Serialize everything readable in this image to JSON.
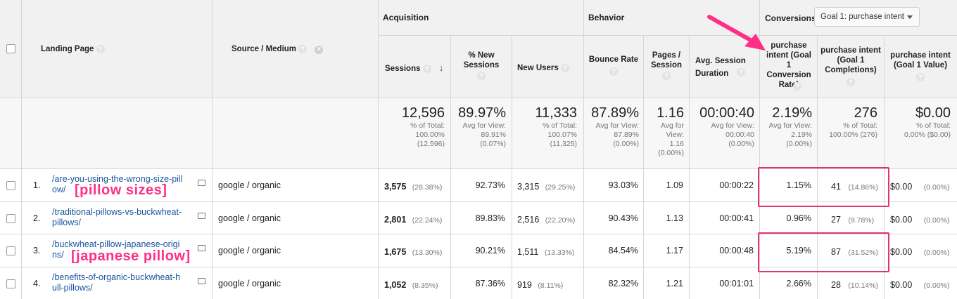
{
  "header": {
    "landing_page": "Landing Page",
    "source_medium": "Source / Medium",
    "acquisition": "Acquisition",
    "behavior": "Behavior",
    "conversions": "Conversions",
    "goal_select": "Goal 1: purchase intent",
    "sessions": "Sessions",
    "new_sessions": "% New Sessions",
    "new_users": "New Users",
    "bounce_rate": "Bounce Rate",
    "pages_session": "Pages / Session",
    "avg_duration": "Avg. Session Duration",
    "conv_rate": "purchase intent (Goal 1 Conversion Rate)",
    "completions": "purchase intent (Goal 1 Completions)",
    "value": "purchase intent (Goal 1 Value)"
  },
  "totals": {
    "sessions": "12,596",
    "sessions_sub": "% of Total: 100.00% (12,596)",
    "new_sessions": "89.97%",
    "new_sessions_sub": "Avg for View: 89.91% (0.07%)",
    "new_users": "11,333",
    "new_users_sub": "% of Total: 100.07% (11,325)",
    "bounce_rate": "87.89%",
    "bounce_rate_sub": "Avg for View: 87.89% (0.00%)",
    "pages": "1.16",
    "pages_sub": "Avg for View: 1.16 (0.00%)",
    "duration": "00:00:40",
    "duration_sub": "Avg for View: 00:00:40 (0.00%)",
    "conv_rate": "2.19%",
    "conv_rate_sub": "Avg for View: 2.19% (0.00%)",
    "completions": "276",
    "completions_sub": "% of Total: 100.00% (276)",
    "value": "$0.00",
    "value_sub": "% of Total: 0.00% ($0.00)"
  },
  "rows": [
    {
      "idx": "1.",
      "page": "/are-you-using-the-wrong-size-pill​ow/",
      "page_l1": "/are-you-using-the-wrong-size-pill",
      "page_l2": "ow/",
      "source": "google / organic",
      "sessions": "3,575",
      "sessions_pct": "(28.38%)",
      "new_sessions": "92.73%",
      "new_users": "3,315",
      "new_users_pct": "(29.25%)",
      "bounce": "93.03%",
      "pages": "1.09",
      "duration": "00:00:22",
      "conv": "1.15%",
      "completions": "41",
      "completions_pct": "(14.86%)",
      "value": "$0.00",
      "value_pct": "(0.00%)"
    },
    {
      "idx": "2.",
      "page_l1": "/traditional-pillows-vs-buckwheat-",
      "page_l2": "pillows/",
      "source": "google / organic",
      "sessions": "2,801",
      "sessions_pct": "(22.24%)",
      "new_sessions": "89.83%",
      "new_users": "2,516",
      "new_users_pct": "(22.20%)",
      "bounce": "90.43%",
      "pages": "1.13",
      "duration": "00:00:41",
      "conv": "0.96%",
      "completions": "27",
      "completions_pct": "(9.78%)",
      "value": "$0.00",
      "value_pct": "(0.00%)"
    },
    {
      "idx": "3.",
      "page_l1": "/buckwheat-pillow-japanese-origi",
      "page_l2": "ns/",
      "source": "google / organic",
      "sessions": "1,675",
      "sessions_pct": "(13.30%)",
      "new_sessions": "90.21%",
      "new_users": "1,511",
      "new_users_pct": "(13.33%)",
      "bounce": "84.54%",
      "pages": "1.17",
      "duration": "00:00:48",
      "conv": "5.19%",
      "completions": "87",
      "completions_pct": "(31.52%)",
      "value": "$0.00",
      "value_pct": "(0.00%)"
    },
    {
      "idx": "4.",
      "page_l1": "/benefits-of-organic-buckwheat-h",
      "page_l2": "ull-pillows/",
      "source": "google / organic",
      "sessions": "1,052",
      "sessions_pct": "(8.35%)",
      "new_sessions": "87.36%",
      "new_users": "919",
      "new_users_pct": "(8.11%)",
      "bounce": "82.32%",
      "pages": "1.21",
      "duration": "00:01:01",
      "conv": "2.66%",
      "completions": "28",
      "completions_pct": "(10.14%)",
      "value": "$0.00",
      "value_pct": "(0.00%)"
    }
  ],
  "annotations": {
    "label1": "[pillow sizes]",
    "label2": "[japanese pillow]",
    "color": "#ff2f87"
  }
}
